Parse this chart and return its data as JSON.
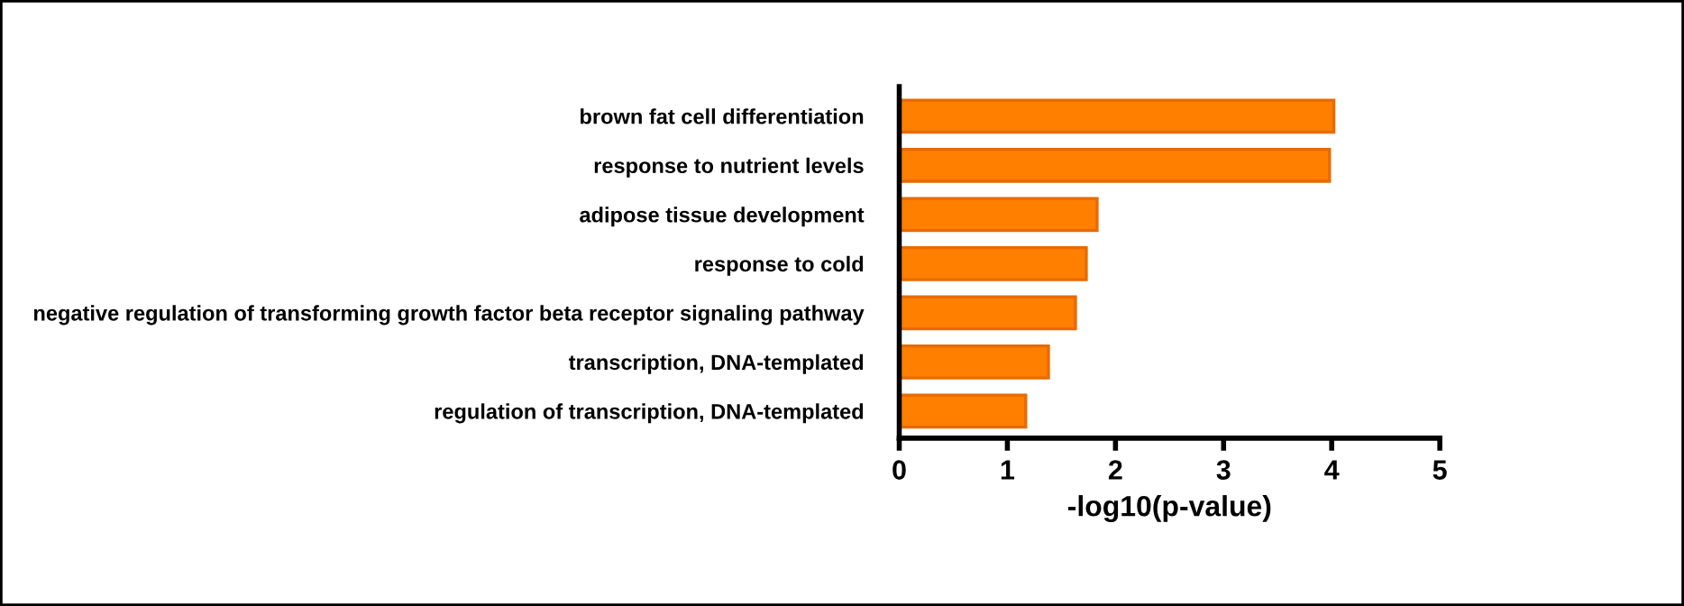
{
  "chart_data": {
    "type": "bar",
    "orientation": "horizontal",
    "xlabel": "-log10(p-value)",
    "categories": [
      "brown fat cell differentiation",
      "response to nutrient levels",
      "adipose tissue development",
      "response to cold",
      "negative regulation of transforming growth factor beta receptor signaling pathway",
      "transcription, DNA-templated",
      "regulation of transcription, DNA-templated"
    ],
    "values": [
      4.02,
      3.98,
      1.83,
      1.73,
      1.63,
      1.38,
      1.17
    ],
    "color": "#ff7f00",
    "xlim": [
      0,
      5
    ],
    "xticks": [
      0,
      1,
      2,
      3,
      4,
      5
    ],
    "grid": false,
    "legend": false
  }
}
